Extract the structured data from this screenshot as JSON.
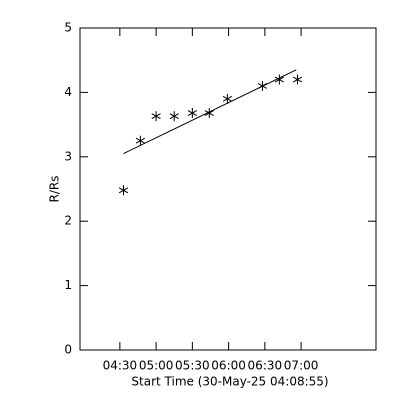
{
  "chart_data": {
    "type": "scatter",
    "x_label": "Start Time (30-May-25 04:08:55)",
    "y_label": "R/Rs",
    "x": [
      273,
      287,
      300,
      315,
      330,
      344,
      359,
      388,
      402,
      417
    ],
    "values": [
      2.48,
      3.25,
      3.63,
      3.63,
      3.68,
      3.68,
      3.9,
      4.1,
      4.2,
      4.2
    ],
    "fit": {
      "x": [
        273,
        416
      ],
      "values": [
        3.05,
        4.35
      ]
    },
    "color": "#000000",
    "xlim": [
      237,
      482
    ],
    "ylim": [
      0,
      5
    ],
    "xticks": [
      {
        "value": 270,
        "label": "04:30"
      },
      {
        "value": 300,
        "label": "05:00"
      },
      {
        "value": 330,
        "label": "05:30"
      },
      {
        "value": 360,
        "label": "06:00"
      },
      {
        "value": 390,
        "label": "06:30"
      },
      {
        "value": 420,
        "label": "07:00"
      }
    ],
    "yticks": [
      0,
      1,
      2,
      3,
      4,
      5
    ]
  }
}
